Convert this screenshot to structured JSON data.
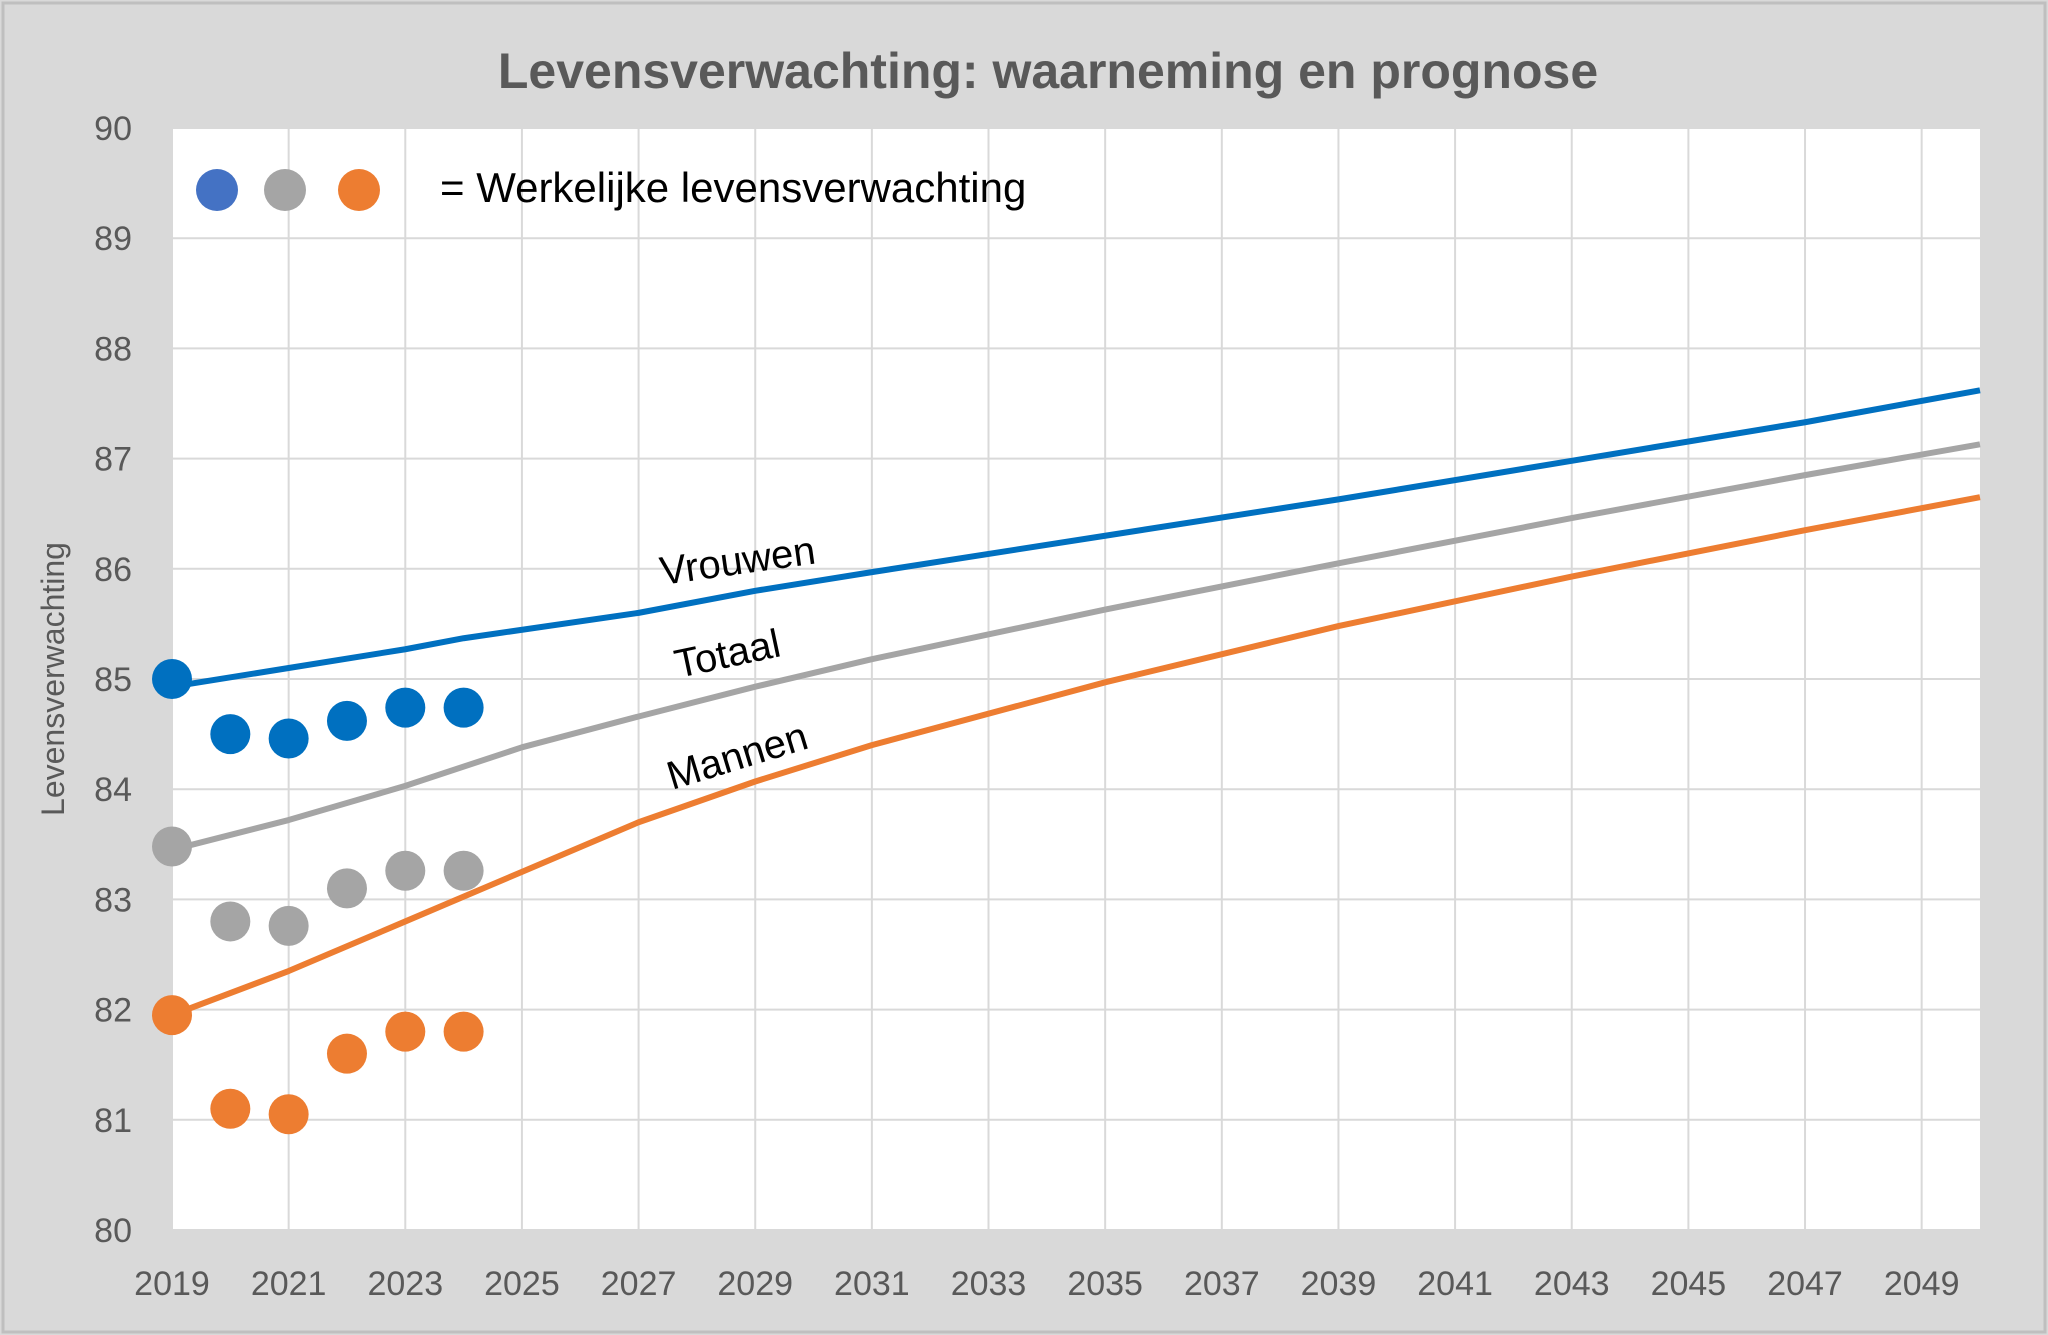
{
  "chart_data": {
    "type": "line",
    "title": "Levensverwachting: waarneming en prognose",
    "xlabel": "",
    "ylabel": "Levensverwachting",
    "xlim": [
      2019,
      2050
    ],
    "ylim": [
      80,
      90
    ],
    "grid": true,
    "x_ticks": [
      2019,
      2021,
      2023,
      2025,
      2027,
      2029,
      2031,
      2033,
      2035,
      2037,
      2039,
      2041,
      2043,
      2045,
      2047,
      2049
    ],
    "y_ticks": [
      80,
      81,
      82,
      83,
      84,
      85,
      86,
      87,
      88,
      89,
      90
    ],
    "legend": {
      "text": "= Werkelijke levensverwachting",
      "placement": "top-left",
      "dot_colors": [
        "#4472c4",
        "#a5a5a5",
        "#ed7d31"
      ]
    },
    "series": [
      {
        "name": "Vrouwen",
        "color": "#0070c0",
        "x": [
          2019,
          2021,
          2023,
          2024,
          2027,
          2029,
          2031,
          2035,
          2039,
          2043,
          2047,
          2050
        ],
        "y": [
          84.93,
          85.1,
          85.27,
          85.37,
          85.6,
          85.8,
          85.97,
          86.3,
          86.63,
          86.98,
          87.33,
          87.62
        ]
      },
      {
        "name": "Totaal",
        "color": "#a5a5a5",
        "x": [
          2019,
          2021,
          2023,
          2025,
          2027,
          2029,
          2031,
          2035,
          2039,
          2043,
          2047,
          2050
        ],
        "y": [
          83.45,
          83.72,
          84.03,
          84.38,
          84.66,
          84.93,
          85.18,
          85.63,
          86.05,
          86.46,
          86.85,
          87.13
        ]
      },
      {
        "name": "Mannen",
        "color": "#ed7d31",
        "x": [
          2019,
          2021,
          2023,
          2025,
          2027,
          2029,
          2031,
          2035,
          2039,
          2043,
          2047,
          2050
        ],
        "y": [
          81.95,
          82.35,
          82.8,
          83.25,
          83.7,
          84.07,
          84.4,
          84.97,
          85.48,
          85.93,
          86.35,
          86.65
        ]
      }
    ],
    "observed": [
      {
        "color": "#0070c0",
        "x": [
          2019,
          2020,
          2021,
          2022,
          2023,
          2024
        ],
        "y": [
          85.0,
          84.5,
          84.46,
          84.62,
          84.74,
          84.74
        ]
      },
      {
        "color": "#a5a5a5",
        "x": [
          2019,
          2020,
          2021,
          2022,
          2023,
          2024
        ],
        "y": [
          83.48,
          82.8,
          82.76,
          83.1,
          83.26,
          83.26
        ]
      },
      {
        "color": "#ed7d31",
        "x": [
          2019,
          2020,
          2021,
          2022,
          2023,
          2024
        ],
        "y": [
          81.95,
          81.1,
          81.05,
          81.6,
          81.8,
          81.8
        ]
      }
    ]
  }
}
